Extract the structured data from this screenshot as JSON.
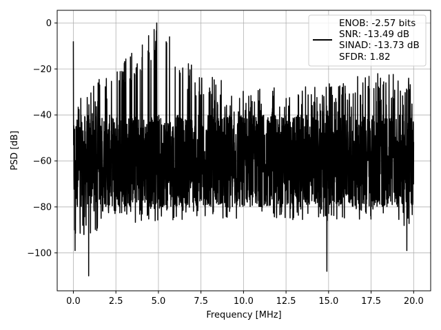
{
  "chart_data": {
    "type": "line",
    "xlabel": "Frequency [MHz]",
    "ylabel": "PSD [dB]",
    "xlim": [
      -0.95,
      21.0
    ],
    "ylim": [
      -116.5,
      5.5
    ],
    "xticks": [
      0.0,
      2.5,
      5.0,
      7.5,
      10.0,
      12.5,
      15.0,
      17.5,
      20.0
    ],
    "xtick_labels": [
      "0.0",
      "2.5",
      "5.0",
      "7.5",
      "10.0",
      "12.5",
      "15.0",
      "17.5",
      "20.0"
    ],
    "yticks": [
      0,
      -20,
      -40,
      -60,
      -80,
      -100
    ],
    "ytick_labels": [
      "0",
      "−20",
      "−40",
      "−60",
      "−80",
      "−100"
    ],
    "grid": true,
    "legend_position": "top-right",
    "series": [
      {
        "name": "ENOB: -2.57 bits",
        "color": "#000000",
        "x_range": [
          0.0,
          20.0
        ],
        "noise_floor_band_db": [
          -80,
          -40
        ],
        "peak_envelope": {
          "x": [
            0.0,
            2.5,
            5.0,
            7.5,
            10.0,
            12.5,
            15.0,
            17.5,
            20.0
          ],
          "y": [
            -30,
            -20,
            0,
            -22,
            -28,
            -28,
            -26,
            -22,
            -22
          ]
        },
        "trough_envelope": {
          "x": [
            0.0,
            2.5,
            5.0,
            7.5,
            10.0,
            12.5,
            15.0,
            17.5,
            20.0
          ],
          "y": [
            -95,
            -88,
            -86,
            -85,
            -86,
            -86,
            -86,
            -86,
            -90
          ]
        },
        "notable_points": [
          {
            "x": 0.0,
            "y": -8
          },
          {
            "x": 0.1,
            "y": -99
          },
          {
            "x": 0.9,
            "y": -110
          },
          {
            "x": 4.9,
            "y": 0
          },
          {
            "x": 14.9,
            "y": -108
          },
          {
            "x": 19.6,
            "y": -99
          }
        ]
      }
    ],
    "legend_lines": [
      "ENOB: -2.57 bits",
      "SNR: -13.49 dB",
      "SINAD: -13.73 dB",
      "SFDR: 1.82"
    ]
  }
}
